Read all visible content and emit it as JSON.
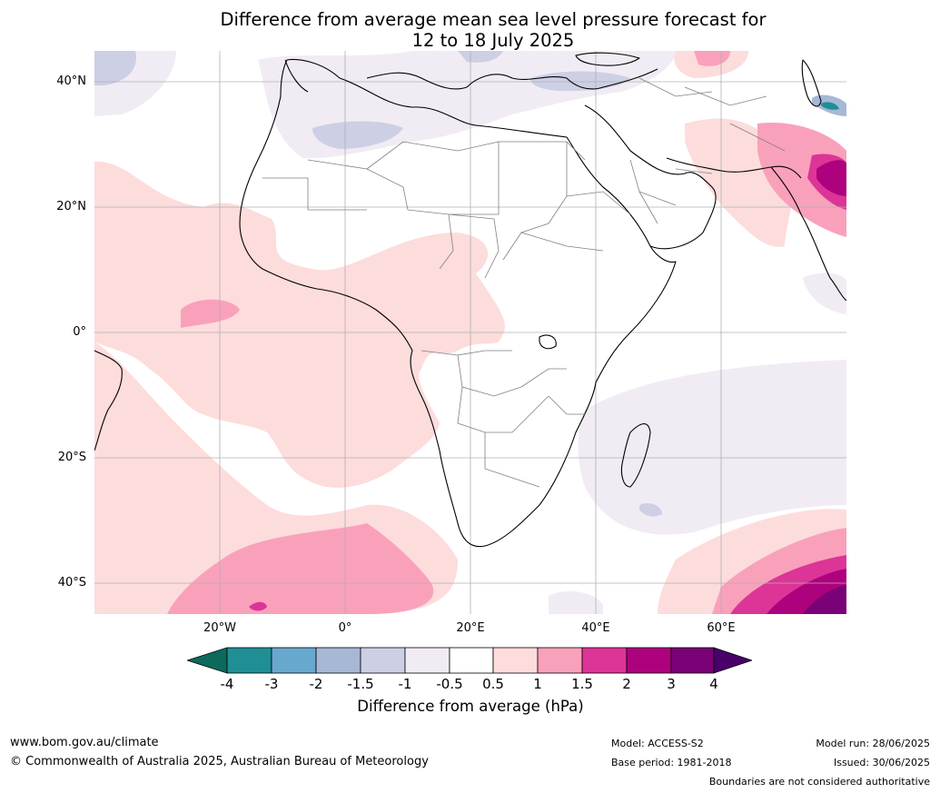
{
  "title": {
    "line1": "Difference from average mean sea level pressure forecast for",
    "line2": "12 to 18 July 2025"
  },
  "axes": {
    "lat_ticks": [
      "40°N",
      "20°N",
      "0°",
      "20°S",
      "40°S"
    ],
    "lon_ticks": [
      "20°W",
      "0°",
      "20°E",
      "40°E",
      "60°E"
    ],
    "lat_range": [
      -45,
      45
    ],
    "lon_range": [
      -40,
      80
    ],
    "grid": true
  },
  "colorbar": {
    "labels": [
      "-4",
      "-3",
      "-2",
      "-1.5",
      "-1",
      "-0.5",
      "0.5",
      "1",
      "1.5",
      "2",
      "3",
      "4"
    ],
    "colors": {
      "below_-4": "#0b6a5b",
      "-4_-3": "#1f8f95",
      "-3_-2": "#67a8cf",
      "-2_-1.5": "#a6b8d6",
      "-1.5_-1": "#cdcfe5",
      "-1_-0.5": "#f1ecf4",
      "-0.5_0.5": "#ffffff",
      "0.5_1": "#fddcdc",
      "1_1.5": "#f9a1bb",
      "1.5_2": "#dd3497",
      "2_3": "#ae017e",
      "3_4": "#7a0177",
      "above_4": "#49006a"
    },
    "title": "Difference from average (hPa)"
  },
  "footer": {
    "website": "www.bom.gov.au/climate",
    "copyright": "© Commonwealth of Australia 2025, Australian Bureau of Meteorology",
    "model": "Model: ACCESS-S2",
    "base_period": "Base period: 1981-2018",
    "model_run": "Model run: 28/06/2025",
    "issued": "Issued: 30/06/2025",
    "disclaimer": "Boundaries are not considered authoritative"
  }
}
